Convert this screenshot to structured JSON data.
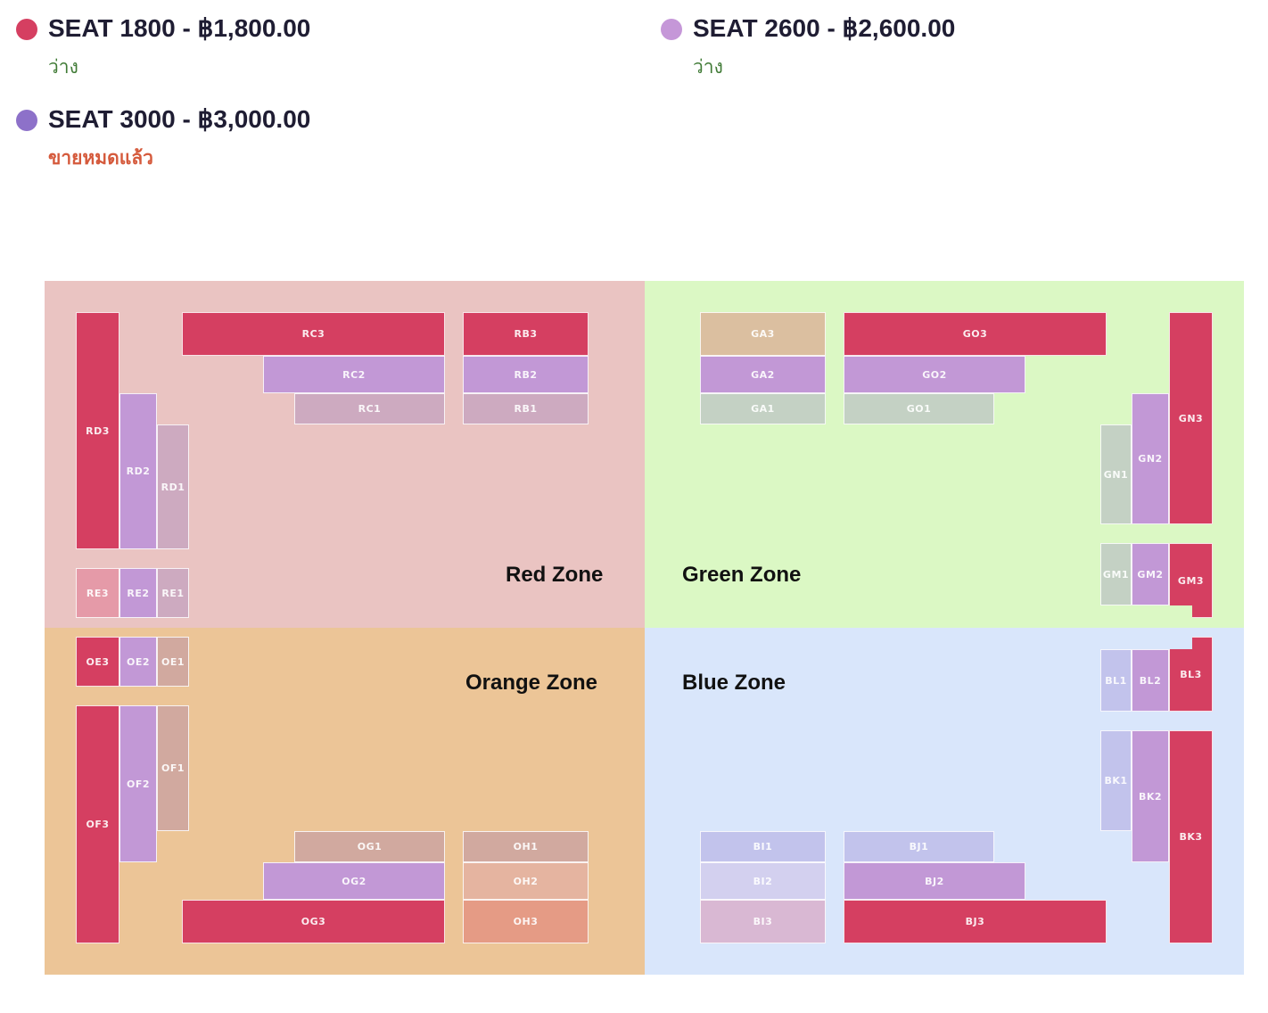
{
  "tiers": [
    {
      "name": "SEAT 1800 - ฿1,800.00",
      "status": "ว่าง",
      "color": "#d53f61",
      "state": "available"
    },
    {
      "name": "SEAT 2600 - ฿2,600.00",
      "status": "ว่าง",
      "color": "#c597d8",
      "state": "available"
    },
    {
      "name": "SEAT 3000 - ฿3,000.00",
      "status": "ขายหมดแล้ว",
      "color": "#8d71c9",
      "state": "soldout"
    }
  ],
  "zones": {
    "red": {
      "label": "Red Zone",
      "color": "#eac4c2"
    },
    "green": {
      "label": "Green Zone",
      "color": "#dbf8c4"
    },
    "orange": {
      "label": "Orange Zone",
      "color": "#ecc597"
    },
    "blue": {
      "label": "Blue Zone",
      "color": "#d9e6fb"
    }
  },
  "sections": {
    "RC3": "RC3",
    "RC2": "RC2",
    "RC1": "RC1",
    "RB3": "RB3",
    "RB2": "RB2",
    "RB1": "RB1",
    "RD3": "RD3",
    "RD2": "RD2",
    "RD1": "RD1",
    "RE3": "RE3",
    "RE2": "RE2",
    "RE1": "RE1",
    "GA3": "GA3",
    "GA2": "GA2",
    "GA1": "GA1",
    "GO3": "GO3",
    "GO2": "GO2",
    "GO1": "GO1",
    "GN3": "GN3",
    "GN2": "GN2",
    "GN1": "GN1",
    "GM1": "GM1",
    "GM2": "GM2",
    "GM3": "GM3",
    "OE3": "OE3",
    "OE2": "OE2",
    "OE1": "OE1",
    "OF3": "OF3",
    "OF2": "OF2",
    "OF1": "OF1",
    "OG1": "OG1",
    "OG2": "OG2",
    "OG3": "OG3",
    "OH1": "OH1",
    "OH2": "OH2",
    "OH3": "OH3",
    "BL1": "BL1",
    "BL2": "BL2",
    "BL3": "BL3",
    "BK1": "BK1",
    "BK2": "BK2",
    "BK3": "BK3",
    "BI1": "BI1",
    "BI2": "BI2",
    "BI3": "BI3",
    "BJ1": "BJ1",
    "BJ2": "BJ2",
    "BJ3": "BJ3"
  },
  "section_colors": {
    "red_tier": "#d53f61",
    "purple_tier": "#c298d6",
    "red_tier_1": "#cdaac0",
    "red_e3": "#e59aa8",
    "green_a3": "#dbbfa0",
    "green_tier_1": "#c4d1c4",
    "orange_tier_1": "#d1a99f",
    "orange_h2": "#e5b4a0",
    "orange_h3": "#e59b85",
    "blue_tier_1": "#c2c3ec",
    "blue_i2": "#d3d0ef",
    "blue_i3": "#d9b8d3"
  }
}
